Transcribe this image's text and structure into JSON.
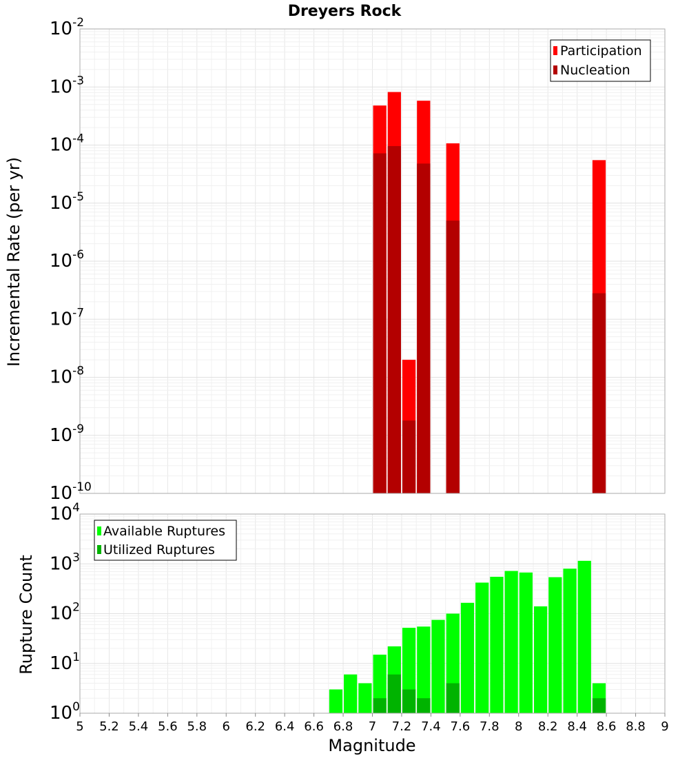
{
  "chart_data": [
    {
      "type": "bar",
      "title": "Dreyers Rock",
      "xlabel": "",
      "ylabel": "Incremental Rate (per yr)",
      "y_scale": "log",
      "ylim_exponents": [
        -10,
        -2
      ],
      "xlim": [
        5,
        9
      ],
      "bin_width": 0.1,
      "grid": true,
      "legend_position": "top-right",
      "series": [
        {
          "name": "Participation",
          "color": "#ff0000",
          "points": [
            [
              7.05,
              0.00048
            ],
            [
              7.15,
              0.00082
            ],
            [
              7.25,
              2e-08
            ],
            [
              7.35,
              0.00058
            ],
            [
              7.55,
              0.000107
            ],
            [
              8.55,
              5.5e-05
            ]
          ]
        },
        {
          "name": "Nucleation",
          "color": "#b30000",
          "points": [
            [
              7.05,
              7.2e-05
            ],
            [
              7.15,
              9.6e-05
            ],
            [
              7.25,
              1.8e-09
            ],
            [
              7.35,
              4.8e-05
            ],
            [
              7.55,
              5e-06
            ],
            [
              8.55,
              2.8e-07
            ]
          ]
        }
      ]
    },
    {
      "type": "bar",
      "xlabel": "Magnitude",
      "ylabel": "Rupture Count",
      "y_scale": "log",
      "ylim_exponents": [
        0,
        4
      ],
      "xlim": [
        5,
        9
      ],
      "bin_width": 0.1,
      "grid": true,
      "legend_position": "top-left",
      "x_ticks": [
        "5",
        "5.2",
        "5.4",
        "5.6",
        "5.8",
        "6",
        "6.2",
        "6.4",
        "6.6",
        "6.8",
        "7",
        "7.2",
        "7.4",
        "7.6",
        "7.8",
        "8",
        "8.2",
        "8.4",
        "8.6",
        "8.8",
        "9"
      ],
      "series": [
        {
          "name": "Available Ruptures",
          "color": "#00ff00",
          "points": [
            [
              6.25,
              1
            ],
            [
              6.55,
              1
            ],
            [
              6.65,
              1
            ],
            [
              6.75,
              3
            ],
            [
              6.85,
              6
            ],
            [
              6.95,
              4
            ],
            [
              7.05,
              15
            ],
            [
              7.15,
              22
            ],
            [
              7.25,
              52
            ],
            [
              7.35,
              55
            ],
            [
              7.45,
              75
            ],
            [
              7.55,
              100
            ],
            [
              7.65,
              165
            ],
            [
              7.75,
              420
            ],
            [
              7.85,
              550
            ],
            [
              7.95,
              720
            ],
            [
              8.05,
              670
            ],
            [
              8.15,
              140
            ],
            [
              8.25,
              540
            ],
            [
              8.35,
              800
            ],
            [
              8.45,
              1150
            ],
            [
              8.55,
              4
            ]
          ]
        },
        {
          "name": "Utilized Ruptures",
          "color": "#00b300",
          "points": [
            [
              7.05,
              2
            ],
            [
              7.15,
              6
            ],
            [
              7.25,
              3
            ],
            [
              7.35,
              2
            ],
            [
              7.55,
              4
            ],
            [
              8.55,
              2
            ]
          ]
        }
      ]
    }
  ]
}
